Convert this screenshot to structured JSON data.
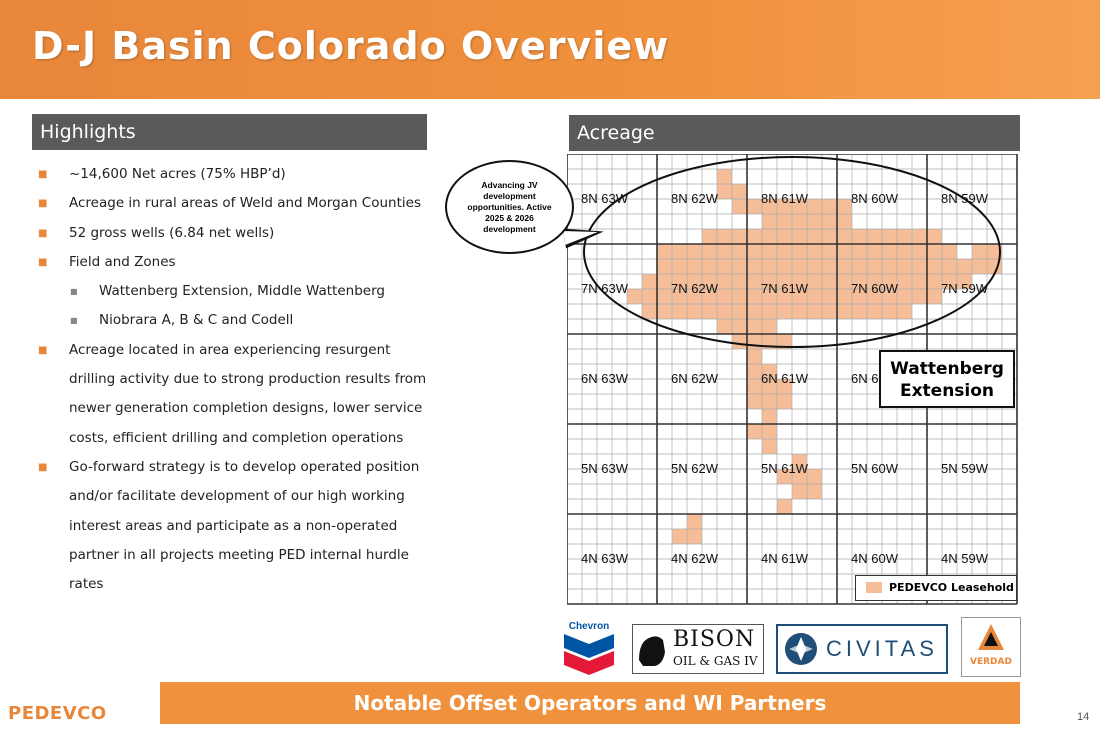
{
  "header": {
    "title": "D-J Basin Colorado Overview"
  },
  "highlights": {
    "title": "Highlights",
    "items": [
      {
        "level": 1,
        "text": "~14,600 Net acres (75% HBP’d)"
      },
      {
        "level": 1,
        "text": "Acreage in rural areas of Weld and Morgan Counties"
      },
      {
        "level": 1,
        "text": "52 gross wells (6.84 net wells)"
      },
      {
        "level": 1,
        "text": "Field and Zones"
      },
      {
        "level": 2,
        "text": "Wattenberg Extension, Middle Wattenberg"
      },
      {
        "level": 2,
        "text": "Niobrara A, B & C and Codell"
      },
      {
        "level": 1,
        "text": "Acreage located in area experiencing resurgent"
      },
      {
        "level": 0,
        "text": "drilling activity due to strong production results from"
      },
      {
        "level": 0,
        "text": "newer generation completion designs, lower service"
      },
      {
        "level": 0,
        "text": "costs, efficient drilling and completion operations"
      },
      {
        "level": 1,
        "text": "Go-forward strategy is to develop operated position"
      },
      {
        "level": 0,
        "text": "and/or facilitate development of our high working"
      },
      {
        "level": 0,
        "text": "interest areas and participate as a non-operated"
      },
      {
        "level": 0,
        "text": "partner in all projects meeting PED internal hurdle"
      },
      {
        "level": 0,
        "text": "rates"
      }
    ]
  },
  "acreage": {
    "title": "Acreage",
    "callout": "Advancing JV development opportunities. Active 2025 & 2026 development",
    "area_label_line1": "Wattenberg",
    "area_label_line2": "Extension",
    "legend": "PEDEVCO Leasehold",
    "leasehold_color": "#f5be99",
    "townships": [
      [
        "8N 63W",
        "8N 62W",
        "8N 61W",
        "8N 60W",
        "8N 59W"
      ],
      [
        "7N 63W",
        "7N 62W",
        "7N 61W",
        "7N 60W",
        "7N 59W"
      ],
      [
        "6N 63W",
        "6N 62W",
        "6N 61W",
        "6N 6",
        ""
      ],
      [
        "5N 63W",
        "5N 62W",
        "5N 61W",
        "5N 60W",
        "5N 59W"
      ],
      [
        "4N 63W",
        "4N 62W",
        "4N 61W",
        "4N 60W",
        "4N 59W"
      ]
    ]
  },
  "logos": {
    "chevron": "Chevron",
    "bison_line1": "BISON",
    "bison_line2": "OIL & GAS IV",
    "civitas": "CIVITAS",
    "verdad": "VERDAD"
  },
  "footer": {
    "banner": "Notable Offset Operators and WI Partners",
    "company": "PEDEVCO",
    "page": "14"
  }
}
